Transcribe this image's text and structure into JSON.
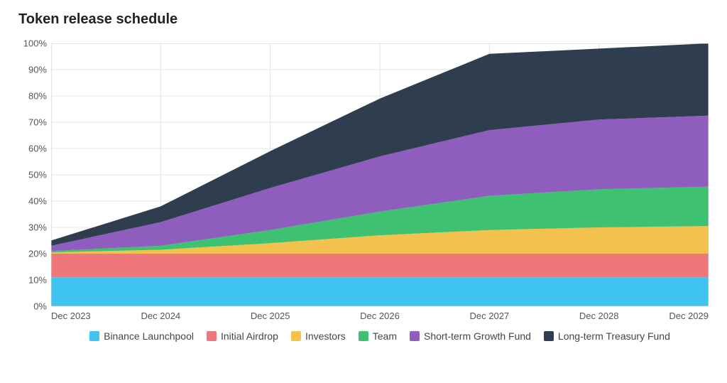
{
  "title": "Token release schedule",
  "chart": {
    "type": "stacked-area",
    "background_color": "#ffffff",
    "grid_color": "#e5e5e5",
    "axis_color": "#cccccc",
    "label_color": "#555555",
    "title_fontsize": 20,
    "label_fontsize": 13,
    "legend_fontsize": 14,
    "ylim": [
      0,
      100
    ],
    "ytick_step": 10,
    "ylabel_suffix": "%",
    "x_categories": [
      "Dec 2023",
      "Dec 2024",
      "Dec 2025",
      "Dec 2026",
      "Dec 2027",
      "Dec 2028",
      "Dec 2029"
    ],
    "series": [
      {
        "name": "Binance Launchpool",
        "color": "#3fc5f0",
        "values": [
          11,
          11,
          11,
          11,
          11,
          11,
          11
        ]
      },
      {
        "name": "Initial Airdrop",
        "color": "#ef767a",
        "values": [
          9,
          9,
          9,
          9,
          9,
          9,
          9
        ]
      },
      {
        "name": "Investors",
        "color": "#f2c14e",
        "values": [
          0.5,
          1.5,
          4,
          7,
          9,
          10,
          10.5
        ]
      },
      {
        "name": "Team",
        "color": "#3ec170",
        "values": [
          0.5,
          1.5,
          5,
          9,
          13,
          14.5,
          15
        ]
      },
      {
        "name": "Short-term Growth Fund",
        "color": "#8e5dbd",
        "values": [
          2,
          9,
          16,
          21,
          25,
          26.5,
          27
        ]
      },
      {
        "name": "Long-term Treasury Fund",
        "color": "#2f3e4e",
        "values": [
          2,
          6,
          14,
          22,
          29,
          27,
          27.5
        ]
      }
    ],
    "legend_position": "bottom"
  }
}
